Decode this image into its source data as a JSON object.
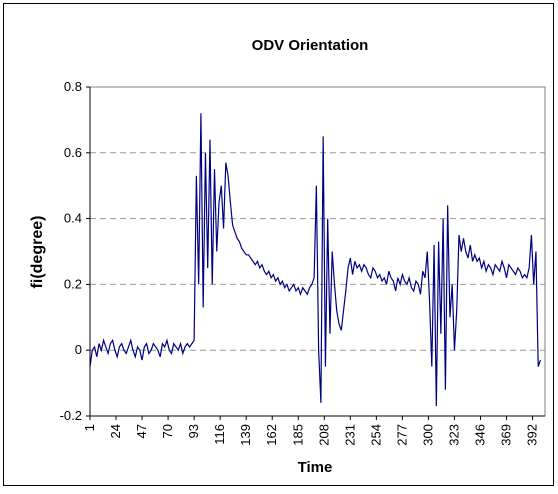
{
  "chart_data": {
    "type": "line",
    "title": "ODV Orientation",
    "x_label": "Time",
    "y_label": "fi(degree)",
    "color": "#000080",
    "grid": true,
    "xlim": [
      1,
      403
    ],
    "xticks": [
      1,
      24,
      47,
      70,
      93,
      116,
      139,
      162,
      185,
      208,
      231,
      254,
      277,
      300,
      323,
      346,
      369,
      392
    ],
    "ylim": [
      -0.2,
      0.8
    ],
    "yticks": [
      -0.2,
      0,
      0.2,
      0.4,
      0.6,
      0.8
    ],
    "x": [
      1,
      3,
      5,
      7,
      9,
      11,
      13,
      15,
      17,
      19,
      21,
      23,
      25,
      27,
      29,
      31,
      33,
      35,
      37,
      39,
      41,
      43,
      45,
      47,
      49,
      51,
      53,
      55,
      57,
      59,
      61,
      63,
      65,
      67,
      69,
      71,
      73,
      75,
      77,
      79,
      81,
      83,
      85,
      87,
      89,
      91,
      93,
      95,
      97,
      99,
      101,
      103,
      105,
      107,
      109,
      111,
      113,
      115,
      117,
      119,
      121,
      123,
      125,
      127,
      129,
      131,
      133,
      135,
      137,
      139,
      141,
      143,
      145,
      147,
      149,
      151,
      153,
      155,
      157,
      159,
      161,
      163,
      165,
      167,
      169,
      171,
      173,
      175,
      177,
      179,
      181,
      183,
      185,
      187,
      189,
      191,
      193,
      195,
      197,
      199,
      201,
      203,
      205,
      207,
      209,
      211,
      213,
      215,
      217,
      219,
      221,
      223,
      225,
      227,
      229,
      231,
      233,
      235,
      237,
      239,
      241,
      243,
      245,
      247,
      249,
      251,
      253,
      255,
      257,
      259,
      261,
      263,
      265,
      267,
      269,
      271,
      273,
      275,
      277,
      279,
      281,
      283,
      285,
      287,
      289,
      291,
      293,
      295,
      297,
      299,
      301,
      303,
      305,
      307,
      309,
      311,
      313,
      315,
      317,
      319,
      321,
      323,
      325,
      327,
      329,
      331,
      333,
      335,
      337,
      339,
      341,
      343,
      345,
      347,
      349,
      351,
      353,
      355,
      357,
      359,
      361,
      363,
      365,
      367,
      369,
      371,
      373,
      375,
      377,
      379,
      381,
      383,
      385,
      387,
      389,
      391,
      393,
      395,
      397,
      399
    ],
    "values": [
      -0.05,
      0.0,
      0.01,
      -0.02,
      0.02,
      0.0,
      0.03,
      0.01,
      -0.01,
      0.02,
      0.03,
      0.0,
      -0.02,
      0.01,
      0.02,
      0.0,
      -0.01,
      0.01,
      0.03,
      0.0,
      -0.02,
      0.01,
      0.0,
      -0.03,
      0.01,
      0.02,
      -0.01,
      0.0,
      0.02,
      0.01,
      0.0,
      -0.02,
      0.02,
      0.01,
      0.03,
      0.0,
      -0.01,
      0.02,
      0.01,
      0.0,
      0.02,
      -0.01,
      0.01,
      0.02,
      0.01,
      0.02,
      0.03,
      0.53,
      0.2,
      0.72,
      0.13,
      0.6,
      0.25,
      0.64,
      0.2,
      0.55,
      0.3,
      0.45,
      0.5,
      0.37,
      0.57,
      0.53,
      0.45,
      0.38,
      0.36,
      0.34,
      0.33,
      0.31,
      0.3,
      0.29,
      0.29,
      0.28,
      0.27,
      0.26,
      0.27,
      0.25,
      0.26,
      0.24,
      0.23,
      0.24,
      0.22,
      0.23,
      0.21,
      0.22,
      0.2,
      0.21,
      0.19,
      0.2,
      0.18,
      0.19,
      0.2,
      0.18,
      0.19,
      0.17,
      0.19,
      0.18,
      0.17,
      0.19,
      0.2,
      0.22,
      0.5,
      0.0,
      -0.16,
      0.65,
      -0.05,
      0.4,
      0.05,
      0.3,
      0.2,
      0.12,
      0.08,
      0.06,
      0.12,
      0.18,
      0.25,
      0.28,
      0.23,
      0.27,
      0.25,
      0.26,
      0.24,
      0.26,
      0.25,
      0.23,
      0.22,
      0.25,
      0.24,
      0.22,
      0.23,
      0.21,
      0.22,
      0.2,
      0.24,
      0.22,
      0.21,
      0.18,
      0.22,
      0.2,
      0.23,
      0.21,
      0.2,
      0.22,
      0.19,
      0.18,
      0.21,
      0.2,
      0.17,
      0.24,
      0.22,
      0.3,
      0.15,
      -0.05,
      0.32,
      -0.17,
      0.33,
      0.05,
      0.4,
      -0.12,
      0.44,
      0.1,
      0.2,
      0.0,
      0.12,
      0.35,
      0.3,
      0.34,
      0.3,
      0.28,
      0.32,
      0.27,
      0.29,
      0.27,
      0.28,
      0.25,
      0.27,
      0.24,
      0.26,
      0.25,
      0.23,
      0.26,
      0.25,
      0.24,
      0.27,
      0.25,
      0.22,
      0.26,
      0.25,
      0.24,
      0.23,
      0.25,
      0.24,
      0.22,
      0.23,
      0.22,
      0.25,
      0.35,
      0.2,
      0.3,
      -0.05,
      -0.03
    ]
  }
}
